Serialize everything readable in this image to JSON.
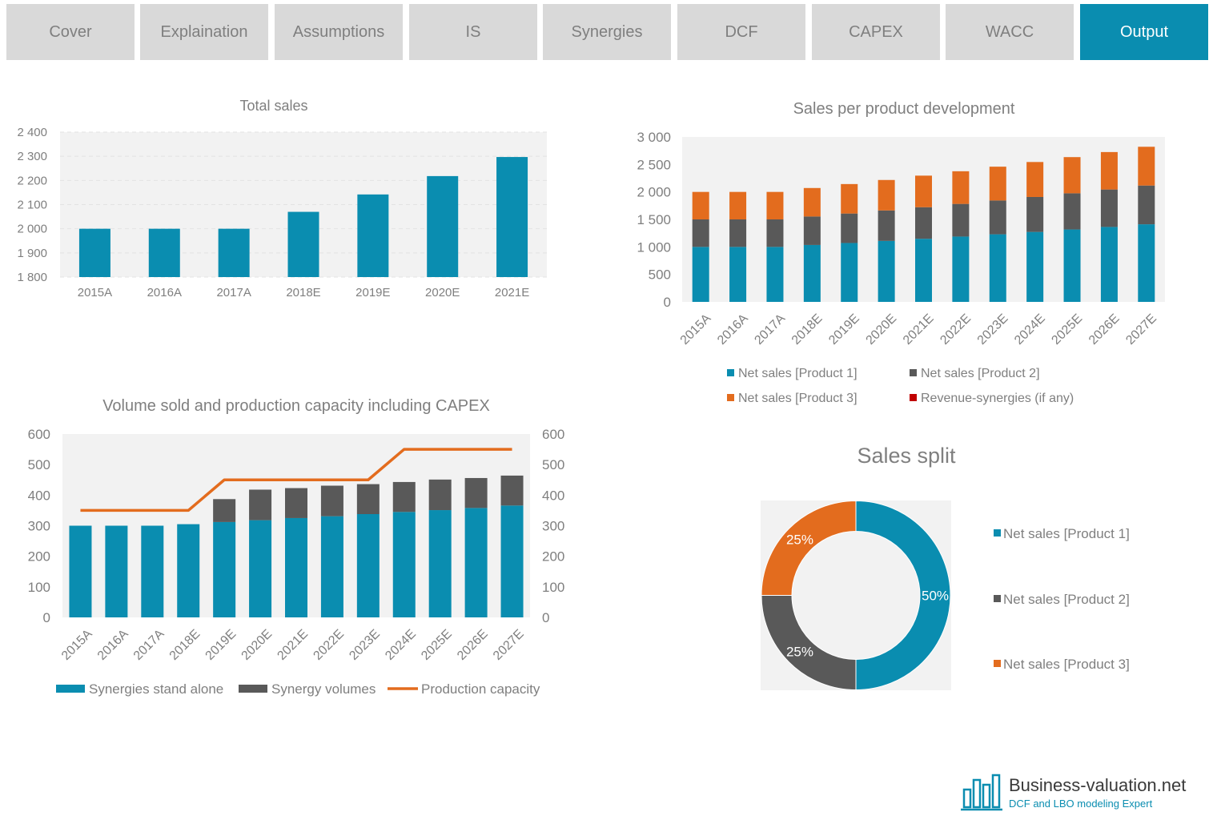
{
  "tabs": [
    {
      "label": "Cover",
      "active": false
    },
    {
      "label": "Explaination",
      "active": false
    },
    {
      "label": "Assumptions",
      "active": false
    },
    {
      "label": "IS",
      "active": false
    },
    {
      "label": "Synergies",
      "active": false
    },
    {
      "label": "DCF",
      "active": false
    },
    {
      "label": "CAPEX",
      "active": false
    },
    {
      "label": "WACC",
      "active": false
    },
    {
      "label": "Output",
      "active": true
    }
  ],
  "colors": {
    "teal": "#0a8db0",
    "gray": "#595959",
    "orange": "#e36c1e",
    "red": "#c00000",
    "plot_bg": "#f2f2f2"
  },
  "brand": {
    "name": "Business-valuation.net",
    "tagline": "DCF and LBO modeling Expert"
  },
  "chart_data": [
    {
      "id": "total-sales",
      "type": "bar",
      "title": "Total sales",
      "categories": [
        "2015A",
        "2016A",
        "2017A",
        "2018E",
        "2019E",
        "2020E",
        "2021E"
      ],
      "values": [
        2000,
        2000,
        2000,
        2070,
        2142,
        2218,
        2297
      ],
      "ylim": [
        1800,
        2400
      ],
      "yticks": [
        "1 800",
        "1 900",
        "2 000",
        "2 100",
        "2 200",
        "2 300",
        "2 400"
      ],
      "grid": true
    },
    {
      "id": "sales-per-product",
      "type": "bar",
      "stacked": true,
      "title": "Sales per product development",
      "categories": [
        "2015A",
        "2016A",
        "2017A",
        "2018E",
        "2019E",
        "2020E",
        "2021E",
        "2022E",
        "2023E",
        "2024E",
        "2025E",
        "2026E",
        "2027E"
      ],
      "series": [
        {
          "name": "Net sales [Product 1]",
          "color": "#0a8db0",
          "values": [
            1000,
            1000,
            1000,
            1035,
            1071,
            1109,
            1148,
            1188,
            1229,
            1272,
            1317,
            1363,
            1411
          ]
        },
        {
          "name": "Net sales [Product 2]",
          "color": "#595959",
          "values": [
            500,
            500,
            500,
            518,
            536,
            554,
            574,
            594,
            615,
            636,
            658,
            681,
            705
          ]
        },
        {
          "name": "Net sales [Product 3]",
          "color": "#e36c1e",
          "values": [
            500,
            500,
            500,
            518,
            536,
            554,
            574,
            594,
            615,
            636,
            658,
            681,
            705
          ]
        },
        {
          "name": "Revenue-synergies (if any)",
          "color": "#c00000",
          "values": [
            0,
            0,
            0,
            0,
            0,
            0,
            0,
            0,
            0,
            0,
            0,
            0,
            0
          ]
        }
      ],
      "ylim": [
        0,
        3000
      ],
      "yticks": [
        "0",
        "500",
        "1 000",
        "1 500",
        "2 000",
        "2 500",
        "3 000"
      ],
      "legend": "bottom"
    },
    {
      "id": "volume-capacity",
      "type": "bar",
      "stacked": true,
      "title": "Volume sold and production capacity including CAPEX",
      "categories": [
        "2015A",
        "2016A",
        "2017A",
        "2018E",
        "2019E",
        "2020E",
        "2021E",
        "2022E",
        "2023E",
        "2024E",
        "2025E",
        "2026E",
        "2027E"
      ],
      "series": [
        {
          "name": "Synergies stand alone",
          "type": "bar",
          "color": "#0a8db0",
          "values": [
            300,
            300,
            300,
            305,
            312,
            318,
            325,
            331,
            338,
            345,
            351,
            358,
            366
          ]
        },
        {
          "name": "Synergy volumes",
          "type": "bar",
          "color": "#595959",
          "values": [
            0,
            0,
            0,
            0,
            75,
            100,
            98,
            100,
            98,
            98,
            100,
            98,
            98
          ]
        },
        {
          "name": "Production capacity",
          "type": "line",
          "color": "#e36c1e",
          "values": [
            350,
            350,
            350,
            350,
            450,
            450,
            450,
            450,
            450,
            550,
            550,
            550,
            550
          ]
        }
      ],
      "ylim": [
        0,
        600
      ],
      "yticks": [
        "0",
        "100",
        "200",
        "300",
        "400",
        "500",
        "600"
      ],
      "legend": "bottom"
    },
    {
      "id": "sales-split",
      "type": "pie",
      "donut": true,
      "title": "Sales split",
      "slices": [
        {
          "name": "Net sales [Product 1]",
          "value": 50,
          "label": "50%",
          "color": "#0a8db0"
        },
        {
          "name": "Net sales [Product 2]",
          "value": 25,
          "label": "25%",
          "color": "#595959"
        },
        {
          "name": "Net sales [Product 3]",
          "value": 25,
          "label": "25%",
          "color": "#e36c1e"
        }
      ],
      "legend": "right"
    }
  ]
}
